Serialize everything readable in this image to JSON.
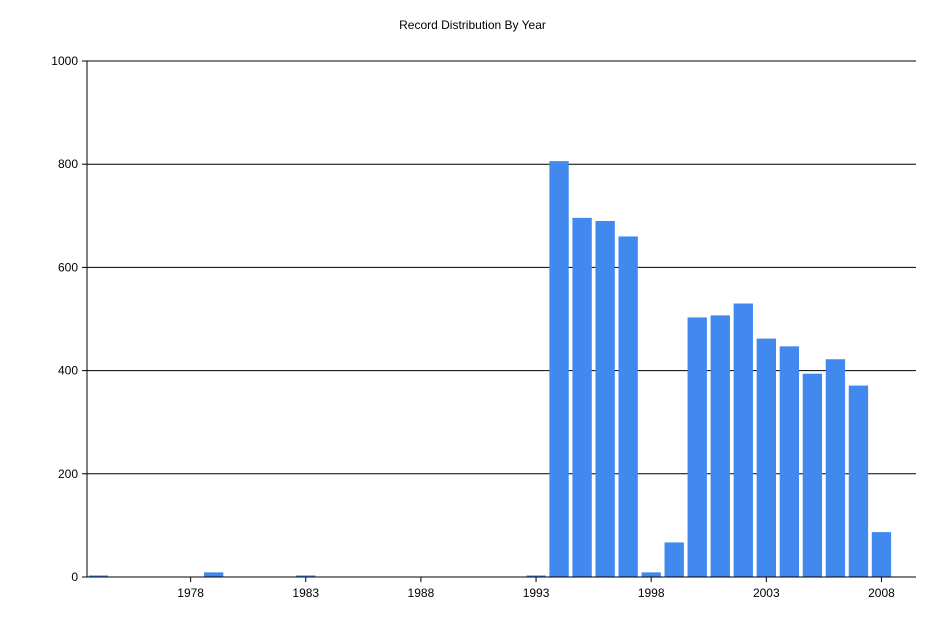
{
  "chart_data": {
    "type": "bar",
    "title": "Record Distribution By Year",
    "xlabel": "",
    "ylabel": "",
    "ylim": [
      0,
      1000
    ],
    "y_ticks": [
      0,
      200,
      400,
      600,
      800,
      1000
    ],
    "x_ticks": [
      1978,
      1983,
      1988,
      1993,
      1998,
      2003,
      2008
    ],
    "grid": true,
    "color": "#4189ef",
    "categories": [
      1974,
      1979,
      1983,
      1993,
      1994,
      1995,
      1996,
      1997,
      1998,
      1999,
      2000,
      2001,
      2002,
      2003,
      2004,
      2005,
      2006,
      2007,
      2008
    ],
    "values": [
      3,
      9,
      3,
      3,
      806,
      696,
      690,
      660,
      9,
      67,
      503,
      507,
      530,
      462,
      447,
      394,
      422,
      371,
      87
    ]
  }
}
